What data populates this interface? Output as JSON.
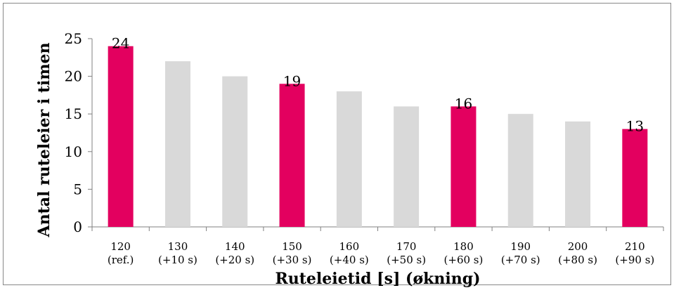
{
  "chart_data": {
    "type": "bar",
    "title": "",
    "xlabel": "Ruteleietid [s] (økning)",
    "ylabel": "Antal ruteleier i timen",
    "ylim": [
      0,
      25
    ],
    "yticks": [
      "0",
      "5",
      "10",
      "15",
      "20",
      "25"
    ],
    "categories": [
      [
        "120",
        "(ref.)"
      ],
      [
        "130",
        "(+10 s)"
      ],
      [
        "140",
        "(+20 s)"
      ],
      [
        "150",
        "(+30 s)"
      ],
      [
        "160",
        "(+40 s)"
      ],
      [
        "170",
        "(+50 s)"
      ],
      [
        "180",
        "(+60 s)"
      ],
      [
        "190",
        "(+70 s)"
      ],
      [
        "200",
        "(+80 s)"
      ],
      [
        "210",
        "(+90 s)"
      ]
    ],
    "values": [
      24,
      22,
      20,
      19,
      18,
      16,
      16,
      15,
      14,
      13
    ],
    "highlighted": [
      true,
      false,
      false,
      true,
      false,
      false,
      true,
      false,
      false,
      true
    ],
    "data_labels": [
      "24",
      "",
      "",
      "19",
      "",
      "",
      "16",
      "",
      "",
      "13"
    ],
    "colors": {
      "highlight": "#E3005F",
      "normal": "#D9D9D9"
    },
    "grid": false,
    "legend": "none"
  }
}
